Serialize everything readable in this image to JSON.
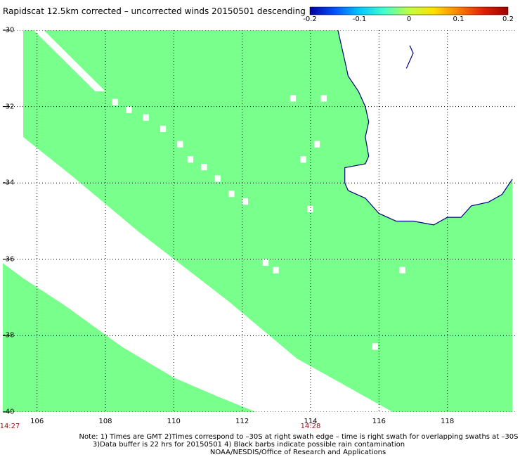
{
  "title": "Rapidscat 12.5km corrected – uncorrected winds 20150501 descending",
  "colorbar": {
    "ticks": [
      "-0.2",
      "-0.1",
      "0",
      "0.1",
      "0.2"
    ],
    "colors": [
      "#0000a0",
      "#0050ff",
      "#00c8ff",
      "#40ffd0",
      "#c0ff40",
      "#ffe000",
      "#ff8000",
      "#e02000",
      "#a00000"
    ]
  },
  "colors": {
    "swath": "#78ff8c",
    "coast": "#000080",
    "grid": "#000000",
    "time_label": "#8b1a1a"
  },
  "chart_data": {
    "type": "heatmap",
    "title": "Rapidscat 12.5km corrected – uncorrected winds 20150501 descending",
    "xlabel": "",
    "ylabel": "",
    "xlim": [
      105,
      120
    ],
    "ylim": [
      -40,
      -30
    ],
    "x_ticks": [
      106,
      108,
      110,
      112,
      114,
      116,
      118
    ],
    "x_tick_labels": [
      "106",
      "108",
      "110",
      "112",
      "114",
      "116",
      "118"
    ],
    "y_ticks": [
      -30,
      -32,
      -34,
      -36,
      -38,
      -40
    ],
    "y_tick_labels": [
      "-30",
      "-32",
      "-34",
      "-36",
      "-38",
      "-40"
    ],
    "grid": true,
    "value_range": [
      -0.2,
      0.2
    ],
    "cell_value": 0,
    "swaths": [
      {
        "name": "swath-east",
        "polygon": [
          [
            105.6,
            -30.0
          ],
          [
            118.9,
            -30.0
          ],
          [
            119.9,
            -34.0
          ],
          [
            119.9,
            -40.0
          ],
          [
            116.4,
            -40.0
          ],
          [
            113.6,
            -38.6
          ],
          [
            111.6,
            -37.1
          ],
          [
            109.0,
            -35.3
          ],
          [
            107.0,
            -33.8
          ],
          [
            105.6,
            -32.8
          ],
          [
            105.6,
            -30.2
          ]
        ]
      },
      {
        "name": "swath-west",
        "polygon": [
          [
            105.0,
            -36.1
          ],
          [
            105.6,
            -36.5
          ],
          [
            106.8,
            -37.2
          ],
          [
            108.5,
            -38.3
          ],
          [
            110.0,
            -39.1
          ],
          [
            111.3,
            -39.6
          ],
          [
            112.4,
            -40.0
          ],
          [
            105.0,
            -40.0
          ]
        ]
      },
      {
        "name": "swath-narrow-strip",
        "polygon": [
          [
            105.8,
            -30.0
          ],
          [
            106.4,
            -30.0
          ],
          [
            108.6,
            -31.8
          ],
          [
            107.8,
            -32.1
          ],
          [
            106.2,
            -30.7
          ]
        ]
      }
    ],
    "gaps": [
      {
        "name": "gap-strip-north",
        "polygon": [
          [
            105.9,
            -30.0
          ],
          [
            106.2,
            -30.0
          ],
          [
            108.0,
            -31.6
          ],
          [
            107.7,
            -31.6
          ]
        ]
      },
      {
        "name": "gap-1",
        "lon": 108.2,
        "lat": -31.8
      },
      {
        "name": "gap-2",
        "lon": 108.6,
        "lat": -32.0
      },
      {
        "name": "gap-3",
        "lon": 109.1,
        "lat": -32.2
      },
      {
        "name": "gap-4",
        "lon": 109.6,
        "lat": -32.5
      },
      {
        "name": "gap-5",
        "lon": 110.1,
        "lat": -32.9
      },
      {
        "name": "gap-6",
        "lon": 110.4,
        "lat": -33.3
      },
      {
        "name": "gap-7",
        "lon": 110.8,
        "lat": -33.5
      },
      {
        "name": "gap-8",
        "lon": 111.2,
        "lat": -33.8
      },
      {
        "name": "gap-9",
        "lon": 111.6,
        "lat": -34.2
      },
      {
        "name": "gap-10",
        "lon": 112.0,
        "lat": -34.4
      },
      {
        "name": "gap-11",
        "lon": 112.6,
        "lat": -36.0
      },
      {
        "name": "gap-12",
        "lon": 112.9,
        "lat": -36.2
      },
      {
        "name": "gap-13",
        "lon": 113.4,
        "lat": -31.7
      },
      {
        "name": "gap-14",
        "lon": 113.7,
        "lat": -33.3
      },
      {
        "name": "gap-15",
        "lon": 114.3,
        "lat": -31.7
      },
      {
        "name": "gap-16",
        "lon": 114.1,
        "lat": -32.9
      },
      {
        "name": "gap-17",
        "lon": 113.9,
        "lat": -34.6
      },
      {
        "name": "gap-18",
        "lon": 116.6,
        "lat": -36.2
      },
      {
        "name": "gap-19",
        "lon": 115.8,
        "lat": -38.2
      }
    ],
    "coastline": [
      [
        114.8,
        -30.0
      ],
      [
        114.9,
        -30.4
      ],
      [
        115.0,
        -30.8
      ],
      [
        115.1,
        -31.2
      ],
      [
        115.4,
        -31.6
      ],
      [
        115.6,
        -32.0
      ],
      [
        115.7,
        -32.4
      ],
      [
        115.6,
        -32.8
      ],
      [
        115.7,
        -33.3
      ],
      [
        115.6,
        -33.5
      ],
      [
        115.0,
        -33.6
      ],
      [
        115.0,
        -34.0
      ],
      [
        115.1,
        -34.2
      ],
      [
        115.6,
        -34.4
      ],
      [
        116.0,
        -34.8
      ],
      [
        116.5,
        -35.0
      ],
      [
        117.0,
        -35.0
      ],
      [
        117.6,
        -35.1
      ],
      [
        118.0,
        -34.9
      ],
      [
        118.4,
        -34.9
      ],
      [
        118.7,
        -34.6
      ],
      [
        119.2,
        -34.5
      ],
      [
        119.6,
        -34.3
      ],
      [
        119.9,
        -33.9
      ]
    ],
    "coastline_fragment": [
      [
        116.8,
        -31.0
      ],
      [
        117.0,
        -30.6
      ],
      [
        116.9,
        -30.4
      ]
    ],
    "land_mask": [
      [
        114.8,
        -30.0
      ],
      [
        120.0,
        -30.0
      ],
      [
        120.0,
        -33.9
      ],
      [
        119.9,
        -33.9
      ],
      [
        119.6,
        -34.3
      ],
      [
        119.2,
        -34.5
      ],
      [
        118.7,
        -34.6
      ],
      [
        118.4,
        -34.9
      ],
      [
        118.0,
        -34.9
      ],
      [
        117.6,
        -35.1
      ],
      [
        117.0,
        -35.0
      ],
      [
        116.5,
        -35.0
      ],
      [
        116.0,
        -34.8
      ],
      [
        115.6,
        -34.4
      ],
      [
        115.1,
        -34.2
      ],
      [
        115.0,
        -34.0
      ],
      [
        115.0,
        -33.6
      ],
      [
        115.6,
        -33.5
      ],
      [
        115.7,
        -33.3
      ],
      [
        115.6,
        -32.8
      ],
      [
        115.7,
        -32.4
      ],
      [
        115.6,
        -32.0
      ],
      [
        115.4,
        -31.6
      ],
      [
        115.1,
        -31.2
      ],
      [
        115.0,
        -30.8
      ],
      [
        114.9,
        -30.4
      ]
    ],
    "time_labels": [
      {
        "text": "14:27",
        "lon": 105.0
      },
      {
        "text": "14:28",
        "lon": 114.0
      }
    ]
  },
  "notes": {
    "line1": "Note: 1) Times are GMT 2)Times correspond to –30S at right swath edge – time is right swath for overlapping swaths at –30S",
    "line2": "3)Data buffer is 22 hrs for 20150501 4) Black barbs indicate possible rain contamination",
    "line3": "NOAA/NESDIS/Office of Research and Applications"
  }
}
